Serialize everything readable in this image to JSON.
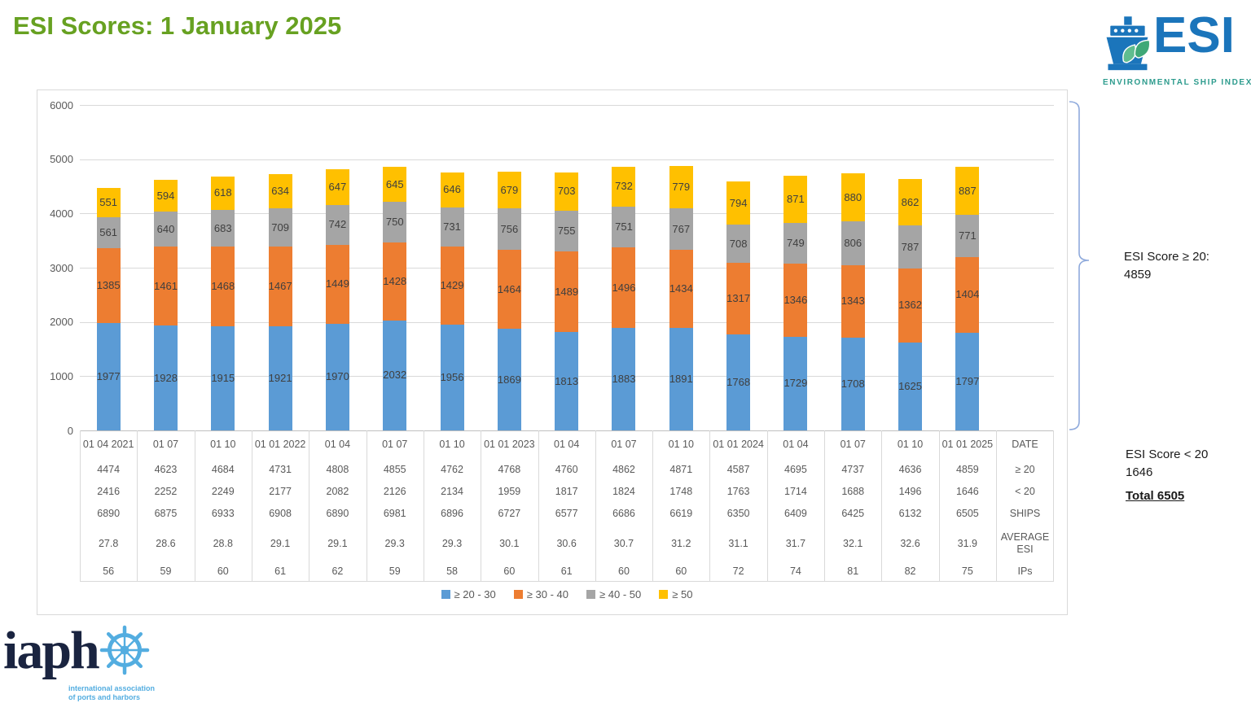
{
  "page": {
    "title": "ESI Scores: 1 January 2025",
    "title_color": "#67A121",
    "background": "#FFFFFF"
  },
  "esi_logo": {
    "wordmark": "ESI",
    "subtitle": "ENVIRONMENTAL SHIP INDEX",
    "brand_blue": "#1B75BB",
    "brand_teal": "#2E9C8E",
    "leaf_green": "#57B287",
    "icon": "ship-with-leaves-icon"
  },
  "iaph_logo": {
    "wordmark": "iaph",
    "subtitle_line1": "international association",
    "subtitle_line2": "of ports and harbors",
    "navy": "#1A2440",
    "light_blue": "#53ADE0",
    "icon": "ship-wheel-icon"
  },
  "annotations": {
    "ge20_label": "ESI Score  ≥ 20:",
    "ge20_value": "4859",
    "lt20_label": "ESI Score < 20",
    "lt20_value": "1646",
    "total_label": "Total 6505",
    "brace_color": "#8FAADC"
  },
  "chart_data": {
    "type": "bar",
    "stacked": true,
    "grid": true,
    "legend_position": "bottom",
    "ylim": [
      0,
      6000
    ],
    "yticks": [
      0,
      1000,
      2000,
      3000,
      4000,
      5000,
      6000
    ],
    "axis_text_color": "#595959",
    "label_text_color": "#3F3F3F",
    "categories": [
      "01 04 2021",
      "01 07",
      "01 10",
      "01 01 2022",
      "01 04",
      "01 07",
      "01 10",
      "01 01 2023",
      "01 04",
      "01 07",
      "01 10",
      "01 01 2024",
      "01 04",
      "01 07",
      "01 10",
      "01 01 2025"
    ],
    "series": [
      {
        "name": "≥ 20 - 30",
        "color": "#5B9BD5",
        "values": [
          1977,
          1928,
          1915,
          1921,
          1970,
          2032,
          1956,
          1869,
          1813,
          1883,
          1891,
          1768,
          1729,
          1708,
          1625,
          1797
        ]
      },
      {
        "name": "≥ 30 - 40",
        "color": "#ED7D31",
        "values": [
          1385,
          1461,
          1468,
          1467,
          1449,
          1428,
          1429,
          1464,
          1489,
          1496,
          1434,
          1317,
          1346,
          1343,
          1362,
          1404
        ]
      },
      {
        "name": "≥ 40 - 50",
        "color": "#A5A5A5",
        "values": [
          561,
          640,
          683,
          709,
          742,
          750,
          731,
          756,
          755,
          751,
          767,
          708,
          749,
          806,
          787,
          771
        ]
      },
      {
        "name": "≥ 50",
        "color": "#FFC000",
        "values": [
          551,
          594,
          618,
          634,
          647,
          645,
          646,
          679,
          703,
          732,
          779,
          794,
          871,
          880,
          862,
          887
        ]
      }
    ],
    "data_table": {
      "rows": [
        {
          "key": "date",
          "label": "DATE",
          "values": [
            "01 04 2021",
            "01 07",
            "01 10",
            "01 01 2022",
            "01 04",
            "01 07",
            "01 10",
            "01 01 2023",
            "01 04",
            "01 07",
            "01 10",
            "01 01 2024",
            "01 04",
            "01 07",
            "01 10",
            "01 01 2025"
          ]
        },
        {
          "key": "ge_20",
          "label": "≥ 20",
          "values": [
            4474,
            4623,
            4684,
            4731,
            4808,
            4855,
            4762,
            4768,
            4760,
            4862,
            4871,
            4587,
            4695,
            4737,
            4636,
            4859
          ]
        },
        {
          "key": "lt_20",
          "label": "< 20",
          "values": [
            2416,
            2252,
            2249,
            2177,
            2082,
            2126,
            2134,
            1959,
            1817,
            1824,
            1748,
            1763,
            1714,
            1688,
            1496,
            1646
          ]
        },
        {
          "key": "ships",
          "label": "SHIPS",
          "values": [
            6890,
            6875,
            6933,
            6908,
            6890,
            6981,
            6896,
            6727,
            6577,
            6686,
            6619,
            6350,
            6409,
            6425,
            6132,
            6505
          ]
        },
        {
          "key": "average_esi",
          "label": "AVERAGE ESI",
          "values": [
            27.8,
            28.6,
            28.8,
            29.1,
            29.1,
            29.3,
            29.3,
            30.1,
            30.6,
            30.7,
            31.2,
            31.1,
            31.7,
            32.1,
            32.6,
            31.9
          ]
        },
        {
          "key": "ips",
          "label": "IPs",
          "values": [
            56,
            59,
            60,
            61,
            62,
            59,
            58,
            60,
            61,
            60,
            60,
            72,
            74,
            81,
            82,
            75
          ]
        }
      ]
    }
  }
}
